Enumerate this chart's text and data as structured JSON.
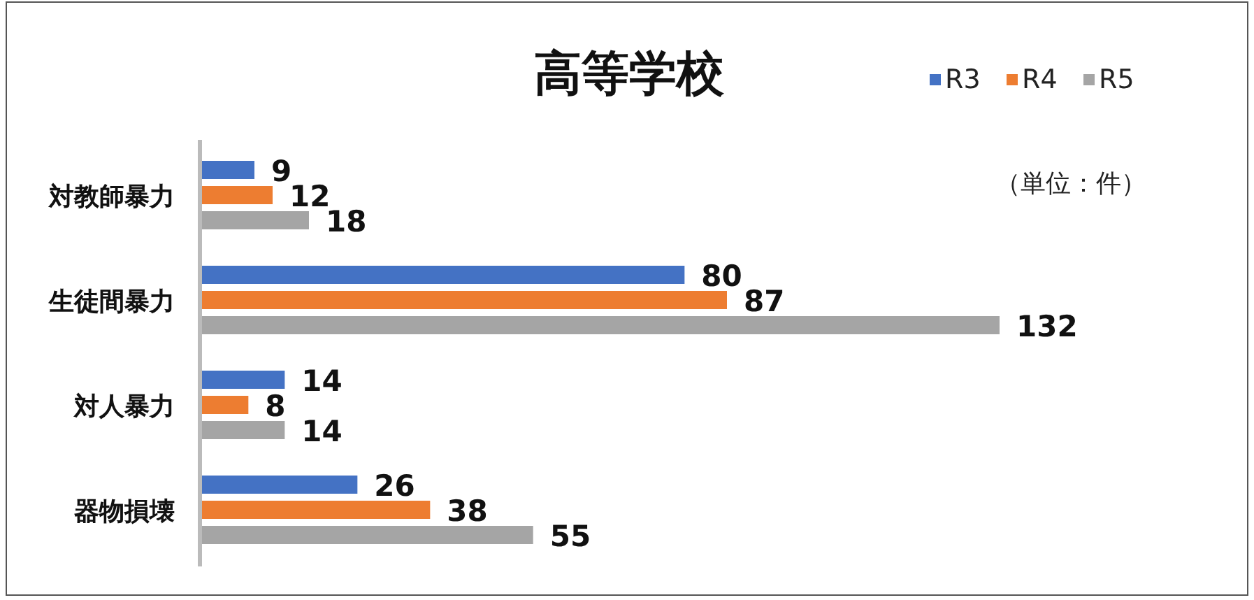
{
  "chart_data": {
    "type": "bar",
    "orientation": "horizontal",
    "title": "高等学校",
    "categories": [
      "対教師暴力",
      "生徒間暴力",
      "対人暴力",
      "器物損壊"
    ],
    "series": [
      {
        "name": "R3",
        "color": "#4472c4",
        "values": [
          9,
          80,
          14,
          26
        ]
      },
      {
        "name": "R4",
        "color": "#ed7d31",
        "values": [
          12,
          87,
          8,
          38
        ]
      },
      {
        "name": "R5",
        "color": "#a5a5a5",
        "values": [
          18,
          132,
          14,
          55
        ]
      }
    ],
    "data_labels": true,
    "legend": "top right",
    "annotations": [
      "（単位：件）"
    ]
  }
}
